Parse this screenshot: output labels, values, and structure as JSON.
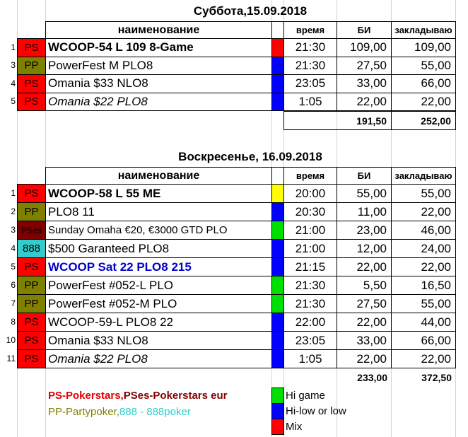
{
  "colors": {
    "ps": "#ff0000",
    "pp": "#808000",
    "pses": "#800000",
    "c888": "#33cccc",
    "mix": "#ff0000",
    "hi_low": "#0000ff",
    "hi_game": "#00e000",
    "yellow": "#ffff00",
    "legend_ps": "#e00000",
    "legend_pp": "#808000",
    "legend_888": "#33cccc",
    "blue_text": "#0000cc"
  },
  "headers": {
    "name": "наименование",
    "time": "время",
    "bi": "БИ",
    "stake": "закладываю"
  },
  "day1": {
    "title": "Суббота,15.09.2018",
    "rows": [
      {
        "n": "1",
        "room": "PS",
        "room_color": "ps",
        "name": "WCOOP-54 L 109 8-Game",
        "style": "bold",
        "type_color": "mix",
        "time": "21:30",
        "bi": "109,00",
        "stake": "109,00"
      },
      {
        "n": "3",
        "room": "PP",
        "room_color": "pp",
        "name": "PowerFest  M PLO8",
        "style": "normal",
        "type_color": "hi_low",
        "time": "21:30",
        "bi": "27,50",
        "stake": "55,00"
      },
      {
        "n": "4",
        "room": "PS",
        "room_color": "ps",
        "name": "Omania $33 NLO8",
        "style": "normal",
        "type_color": "hi_low",
        "time": "23:05",
        "bi": "33,00",
        "stake": "66,00"
      },
      {
        "n": "5",
        "room": "PS",
        "room_color": "ps",
        "name": "Omania $22 PLO8",
        "style": "italic",
        "type_color": "hi_low",
        "time": "1:05",
        "bi": "22,00",
        "stake": "22,00"
      }
    ],
    "total_bi": "191,50",
    "total_stake": "252,00"
  },
  "day2": {
    "title": "Воскресенье, 16.09.2018",
    "rows": [
      {
        "n": "1",
        "room": "PS",
        "room_color": "ps",
        "name": "WCOOP-58 L 55 ME",
        "style": "bold",
        "type_color": "yellow",
        "time": "20:00",
        "bi": "55,00",
        "stake": "55,00"
      },
      {
        "n": "2",
        "room": "PP",
        "room_color": "pp",
        "name": "PLO8 11",
        "style": "normal",
        "type_color": "hi_low",
        "time": "20:30",
        "bi": "11,00",
        "stake": "22,00"
      },
      {
        "n": "3",
        "room": "PSes",
        "room_color": "pses",
        "name": "Sunday Omaha €20, €3000 GTD PLO",
        "style": "normal",
        "type_color": "hi_game",
        "time": "21:00",
        "bi": "23,00",
        "stake": "46,00"
      },
      {
        "n": "4",
        "room": "888",
        "room_color": "c888",
        "name": "$500 Garanteed PLO8",
        "style": "normal",
        "type_color": "hi_low",
        "time": "21:00",
        "bi": "12,00",
        "stake": "24,00"
      },
      {
        "n": "5",
        "room": "PS",
        "room_color": "ps",
        "name": "WCOOP Sat 22 PLO8 215",
        "style": "bold-blue",
        "type_color": "hi_low",
        "time": "21:15",
        "bi": "22,00",
        "stake": "22,00"
      },
      {
        "n": "6",
        "room": "PP",
        "room_color": "pp",
        "name": "PowerFest #052-L PLO",
        "style": "normal",
        "type_color": "hi_game",
        "time": "21:30",
        "bi": "5,50",
        "stake": "16,50"
      },
      {
        "n": "7",
        "room": "PP",
        "room_color": "pp",
        "name": "PowerFest #052-M PLO",
        "style": "normal",
        "type_color": "hi_game",
        "time": "21:30",
        "bi": "27,50",
        "stake": "55,00"
      },
      {
        "n": "8",
        "room": "PS",
        "room_color": "ps",
        "name": "WCOOP-59-L PLO8 22",
        "style": "normal",
        "type_color": "hi_low",
        "time": "22:00",
        "bi": "22,00",
        "stake": "44,00"
      },
      {
        "n": "10",
        "room": "PS",
        "room_color": "ps",
        "name": "Omania $33 NLO8",
        "style": "normal",
        "type_color": "hi_low",
        "time": "23:05",
        "bi": "33,00",
        "stake": "66,00"
      },
      {
        "n": "11",
        "room": "PS",
        "room_color": "ps",
        "name": "Omania $22 PLO8",
        "style": "italic",
        "type_color": "hi_low",
        "time": "1:05",
        "bi": "22,00",
        "stake": "22,00"
      }
    ],
    "total_bi": "233,00",
    "total_stake": "372,50"
  },
  "legend": {
    "ps": "PS-Pokerstars, ",
    "pses": "PSes-Pokerstars eur",
    "pp": "PP-Partypoker, ",
    "c888": "888 - 888poker",
    "hi_game": "Hi game",
    "hi_low": "Hi-low or low",
    "mix": "Mix"
  }
}
